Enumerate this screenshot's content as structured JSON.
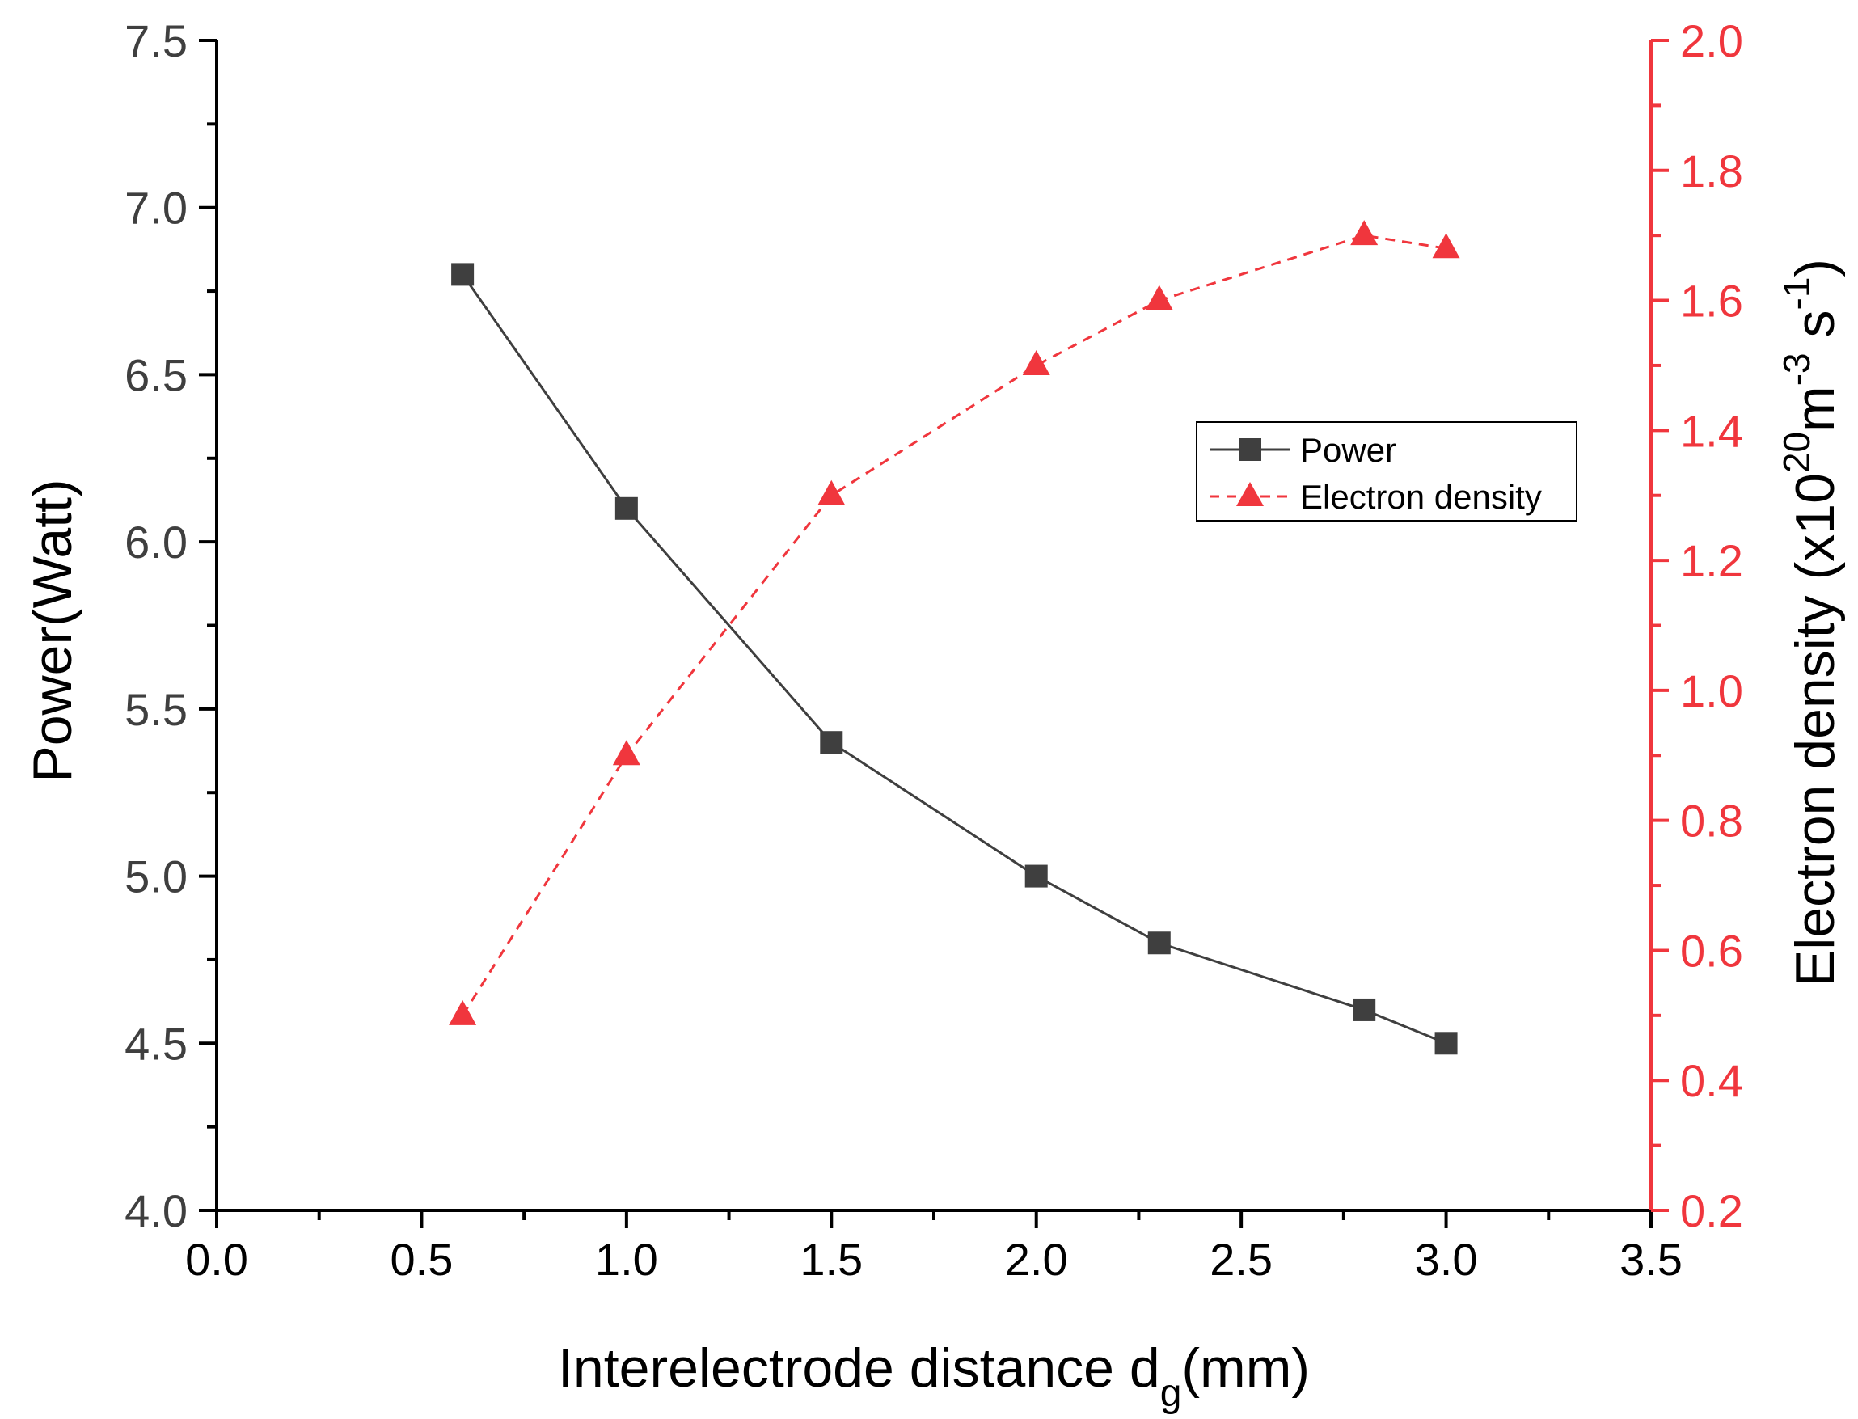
{
  "chart_data": {
    "type": "line",
    "x": [
      0.6,
      1.0,
      1.5,
      2.0,
      2.3,
      2.8,
      3.0
    ],
    "xlim": [
      0.0,
      3.5
    ],
    "x_ticks": [
      "0.0",
      "0.5",
      "1.0",
      "1.5",
      "2.0",
      "2.5",
      "3.0",
      "3.5"
    ],
    "xlabel": {
      "main": "Interelectrode distance d",
      "subscript": "g",
      "suffix": "(mm)"
    },
    "ylabel_left": "Power(Watt)",
    "ylim_left": [
      4.0,
      7.5
    ],
    "y_ticks_left": [
      "4.0",
      "4.5",
      "5.0",
      "5.5",
      "6.0",
      "6.5",
      "7.0",
      "7.5"
    ],
    "ylabel_right": {
      "main": "Electron density (x10",
      "sup1": "20",
      "mid": "m",
      "sup2": "-3",
      "mid2": " s",
      "sup3": "-1",
      "suffix": ")"
    },
    "ylim_right": [
      0.2,
      2.0
    ],
    "y_ticks_right": [
      "0.2",
      "0.4",
      "0.6",
      "0.8",
      "1.0",
      "1.2",
      "1.4",
      "1.6",
      "1.8",
      "2.0"
    ],
    "series": [
      {
        "name": "Power",
        "axis": "left",
        "marker": "square",
        "line": "solid",
        "color": "#3f3f3f",
        "values": [
          6.8,
          6.1,
          5.4,
          5.0,
          4.8,
          4.6,
          4.5
        ]
      },
      {
        "name": "Electron density",
        "axis": "right",
        "marker": "triangle",
        "line": "dashed",
        "color": "#f0363d",
        "values": [
          0.5,
          0.9,
          1.3,
          1.5,
          1.6,
          1.7,
          1.68
        ]
      }
    ],
    "legend_position": "center-right",
    "grid": false
  }
}
